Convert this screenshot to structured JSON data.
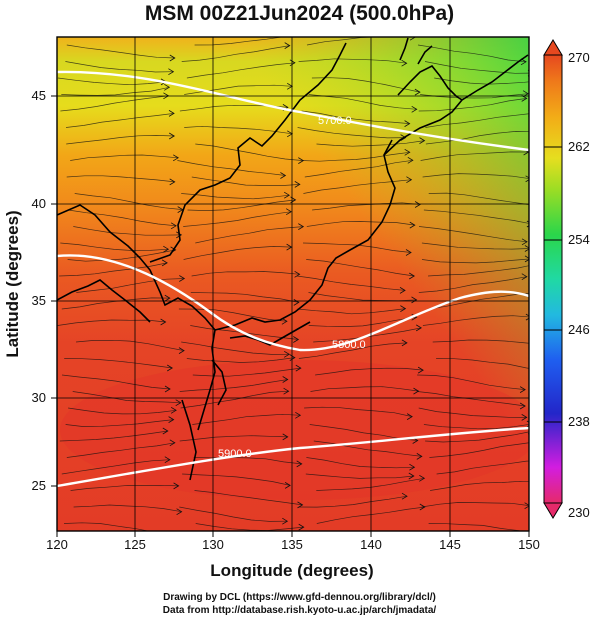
{
  "title": "MSM 00Z21Jun2024 (500.0hPa)",
  "axes": {
    "xlabel": "Longitude (degrees)",
    "ylabel": "Latitude  (degrees)",
    "xticks": [
      "120",
      "125",
      "130",
      "135",
      "140",
      "145",
      "150"
    ],
    "yticks": [
      "25",
      "30",
      "35",
      "40",
      "45"
    ]
  },
  "colorbar": {
    "min": 230,
    "max": 270,
    "labels": [
      "270",
      "262",
      "254",
      "246",
      "238",
      "230"
    ],
    "colors": [
      "#e62a6a",
      "#d21de0",
      "#2326c9",
      "#1f5ff0",
      "#22b9e0",
      "#20d9a3",
      "#2bd64a",
      "#9cdd24",
      "#e6de1f",
      "#f2ad17",
      "#ef7a1a",
      "#e6481f"
    ]
  },
  "contours": {
    "label_top": "5700.0",
    "label_mid": "5800.0",
    "label_low": "5900.0"
  },
  "map_data": {
    "lon_range": [
      120,
      150
    ],
    "lat_range": [
      22.5,
      48
    ],
    "field": "temperature (K) with wind streamlines"
  },
  "credits": {
    "line1": "Drawing by DCL (https://www.gfd-dennou.org/library/dcl/)",
    "line2": "Data from http://database.rish.kyoto-u.ac.jp/arch/jmadata/"
  }
}
